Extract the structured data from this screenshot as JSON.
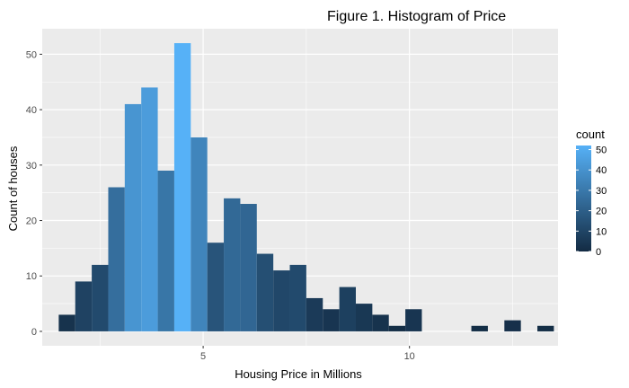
{
  "chart_data": {
    "type": "bar",
    "title": "Figure 1. Histogram of Price",
    "xlabel": "Housing Price in Millions",
    "ylabel": "Count of houses",
    "xlim": [
      1.1,
      13.6
    ],
    "ylim": [
      -2.6,
      54.6
    ],
    "x_ticks": [
      5,
      10
    ],
    "y_ticks": [
      0,
      10,
      20,
      30,
      40,
      50
    ],
    "grid": true,
    "bins": [
      {
        "x0": 1.5,
        "x1": 1.9,
        "count": 3
      },
      {
        "x0": 1.9,
        "x1": 2.3,
        "count": 9
      },
      {
        "x0": 2.3,
        "x1": 2.7,
        "count": 12
      },
      {
        "x0": 2.7,
        "x1": 3.1,
        "count": 26
      },
      {
        "x0": 3.1,
        "x1": 3.5,
        "count": 41
      },
      {
        "x0": 3.5,
        "x1": 3.9,
        "count": 44
      },
      {
        "x0": 3.9,
        "x1": 4.3,
        "count": 29
      },
      {
        "x0": 4.3,
        "x1": 4.7,
        "count": 52
      },
      {
        "x0": 4.7,
        "x1": 5.1,
        "count": 35
      },
      {
        "x0": 5.1,
        "x1": 5.5,
        "count": 16
      },
      {
        "x0": 5.5,
        "x1": 5.9,
        "count": 24
      },
      {
        "x0": 5.9,
        "x1": 6.3,
        "count": 23
      },
      {
        "x0": 6.3,
        "x1": 6.7,
        "count": 14
      },
      {
        "x0": 6.7,
        "x1": 7.1,
        "count": 11
      },
      {
        "x0": 7.1,
        "x1": 7.5,
        "count": 12
      },
      {
        "x0": 7.5,
        "x1": 7.9,
        "count": 6
      },
      {
        "x0": 7.9,
        "x1": 8.3,
        "count": 4
      },
      {
        "x0": 8.3,
        "x1": 8.7,
        "count": 8
      },
      {
        "x0": 8.7,
        "x1": 9.1,
        "count": 5
      },
      {
        "x0": 9.1,
        "x1": 9.5,
        "count": 3
      },
      {
        "x0": 9.5,
        "x1": 9.9,
        "count": 1
      },
      {
        "x0": 9.9,
        "x1": 10.3,
        "count": 4
      },
      {
        "x0": 11.5,
        "x1": 11.9,
        "count": 1
      },
      {
        "x0": 12.3,
        "x1": 12.7,
        "count": 2
      },
      {
        "x0": 13.1,
        "x1": 13.5,
        "count": 1
      }
    ],
    "legend": {
      "title": "count",
      "ticks": [
        0,
        10,
        20,
        30,
        40,
        50
      ],
      "range": [
        0,
        52
      ],
      "low_color": "#132B43",
      "high_color": "#56B1F7",
      "placement": "right"
    },
    "colors": {
      "panel": "#EBEBEB",
      "grid": "#FFFFFF"
    }
  }
}
